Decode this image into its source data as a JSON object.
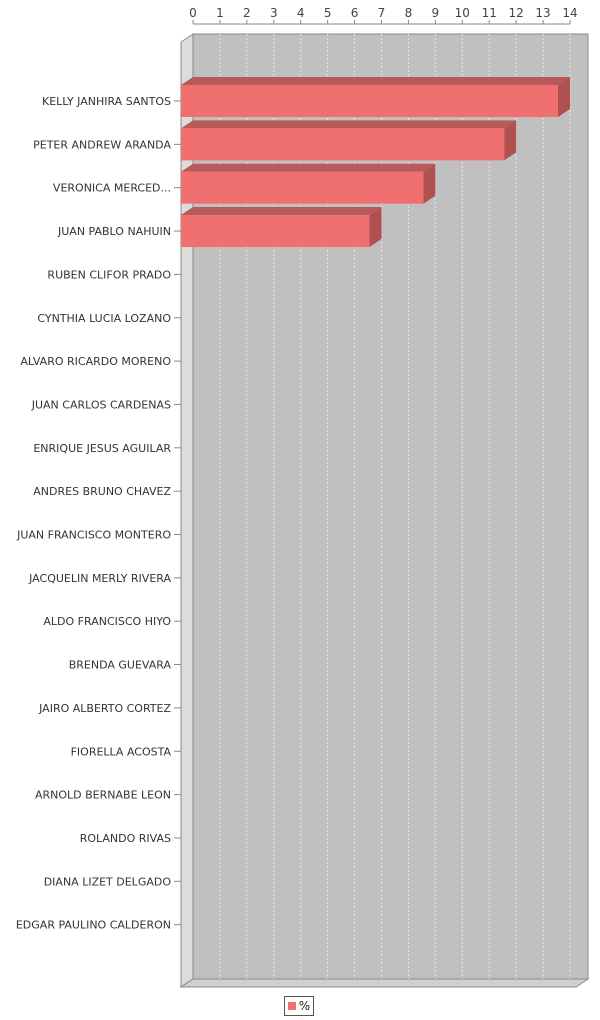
{
  "chart_data": {
    "type": "bar",
    "orientation": "horizontal",
    "style": "3d",
    "categories": [
      "KELLY JANHIRA SANTOS",
      "PETER ANDREW ARANDA",
      "VERONICA MERCED...",
      "JUAN PABLO NAHUIN",
      "RUBEN CLIFOR PRADO",
      "CYNTHIA LUCIA LOZANO",
      "ALVARO RICARDO MORENO",
      "JUAN CARLOS CARDENAS",
      "ENRIQUE JESUS AGUILAR",
      "ANDRES BRUNO CHAVEZ",
      "JUAN FRANCISCO MONTERO",
      "JACQUELIN MERLY RIVERA",
      "ALDO FRANCISCO HIYO",
      "BRENDA GUEVARA",
      "JAIRO ALBERTO CORTEZ",
      "FIORELLA ACOSTA",
      "ARNOLD BERNABE LEON",
      "ROLANDO RIVAS",
      "DIANA LIZET DELGADO",
      "EDGAR PAULINO CALDERON"
    ],
    "series": [
      {
        "name": "%",
        "color": "#f07070",
        "values": [
          14,
          12,
          9,
          7,
          0,
          0,
          0,
          0,
          0,
          0,
          0,
          0,
          0,
          0,
          0,
          0,
          0,
          0,
          0,
          0
        ]
      }
    ],
    "xlim": [
      0,
      14
    ],
    "xticks": [
      "0",
      "1",
      "2",
      "3",
      "4",
      "5",
      "6",
      "7",
      "8",
      "9",
      "10",
      "11",
      "12",
      "13",
      "14"
    ],
    "axis_position": "top",
    "grid": true,
    "legend": "bottom",
    "colors": {
      "plot_background": "#c0c0c0",
      "gridline": "#e6e6e6",
      "bar_front": "#f07070",
      "bar_top": "#b85a5a",
      "bar_side": "#b05050"
    }
  }
}
